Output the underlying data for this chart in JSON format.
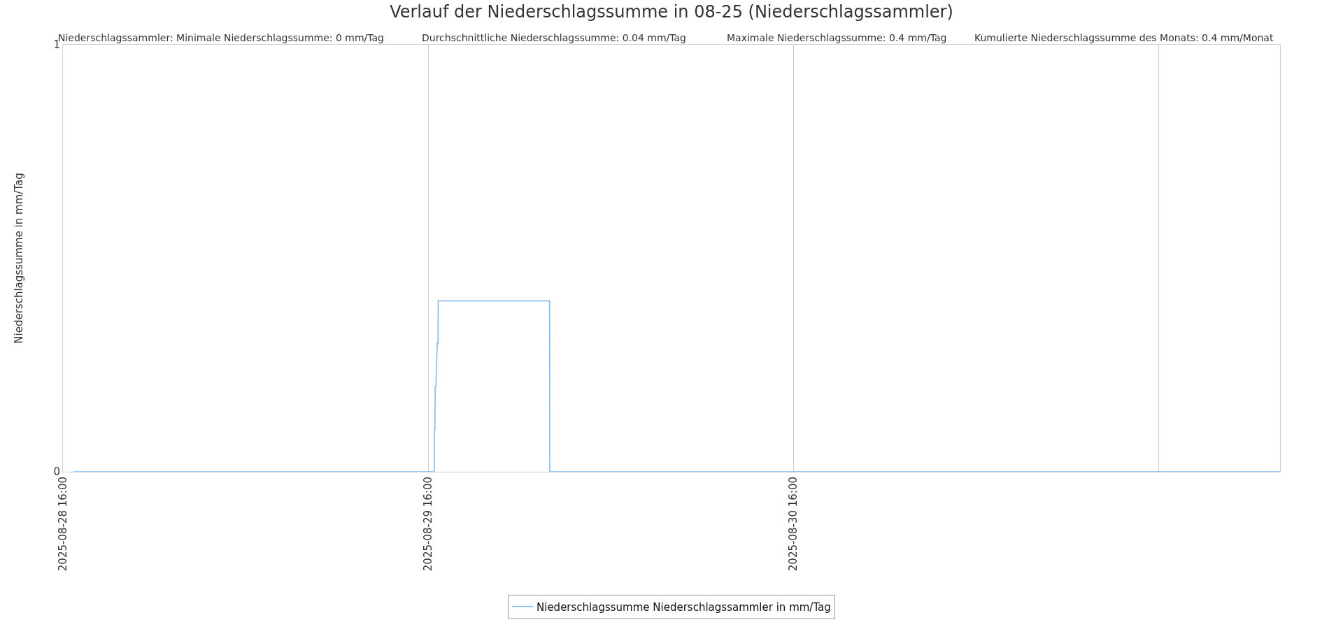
{
  "chart_data": {
    "type": "line",
    "title": "Verlauf der Niederschlagssumme in 08-25 (Niederschlagssammler)",
    "annotations": [
      "Niederschlagssammler: Minimale Niederschlagssumme: 0 mm/Tag",
      "Durchschnittliche Niederschlagssumme: 0.04 mm/Tag",
      "Maximale Niederschlagssumme: 0.4 mm/Tag",
      "Kumulierte Niederschlagssumme des Monats: 0.4 mm/Monat"
    ],
    "ylabel": "Niederschlagssumme in mm/Tag",
    "series": [
      {
        "name": "Niederschlagssumme Niederschlagssammler in mm/Tag",
        "color": "#7cb5ec",
        "x": [
          "2025-08-28T16:40",
          "2025-08-29T16:24",
          "2025-08-29T16:25",
          "2025-08-29T16:27",
          "2025-08-29T16:28",
          "2025-08-29T16:31",
          "2025-08-29T16:36",
          "2025-08-29T16:39",
          "2025-08-29T16:40",
          "2025-08-29T23:59",
          "2025-08-30T00:00",
          "2025-08-31T23:59"
        ],
        "values": [
          0,
          0,
          0.1,
          0.1,
          0.2,
          0.2,
          0.3,
          0.3,
          0.4,
          0.4,
          0,
          0
        ]
      }
    ],
    "xlim": [
      "2025-08-28T16:00",
      "2025-09-01T00:00"
    ],
    "xticks": [
      {
        "value": "2025-08-28T16:00",
        "label": "2025-08-28 16:00"
      },
      {
        "value": "2025-08-29T16:00",
        "label": "2025-08-29 16:00"
      },
      {
        "value": "2025-08-30T16:00",
        "label": "2025-08-30 16:00"
      },
      {
        "value": "2025-08-31T16:00",
        "label": null
      }
    ],
    "ylim": [
      0,
      1
    ],
    "yticks": [
      0,
      1
    ],
    "grid": "x",
    "legend": "bottom",
    "line_style": "solid"
  }
}
